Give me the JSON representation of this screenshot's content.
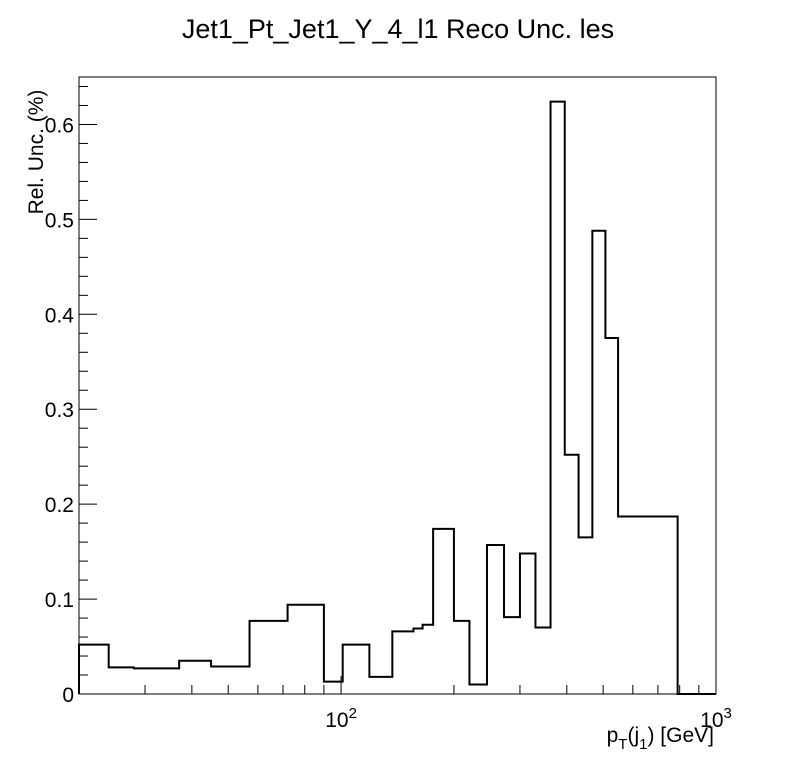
{
  "chart_data": {
    "type": "histogram-step",
    "title": "Jet1_Pt_Jet1_Y_4_l1 Reco Unc. les",
    "xlabel": {
      "base": "p",
      "sub1": "T",
      "mid": "(j",
      "sub2": "1",
      "tail": ") [GeV]"
    },
    "ylabel": "Rel. Unc. (%)",
    "x_scale": "log",
    "xlim": [
      20,
      1000
    ],
    "ylim": [
      0,
      0.65
    ],
    "y_ticks": [
      0,
      0.1,
      0.2,
      0.3,
      0.4,
      0.5,
      0.6
    ],
    "y_tick_labels": [
      "0",
      "0.1",
      "0.2",
      "0.3",
      "0.4",
      "0.5",
      "0.6"
    ],
    "x_major_ticks": [
      {
        "value": 100,
        "base": "10",
        "exp": "2"
      },
      {
        "value": 1000,
        "base": "10",
        "exp": "3"
      }
    ],
    "bins": [
      {
        "lo": 20,
        "hi": 24,
        "value": 0.052
      },
      {
        "lo": 24,
        "hi": 28,
        "value": 0.028
      },
      {
        "lo": 28,
        "hi": 37,
        "value": 0.027
      },
      {
        "lo": 37,
        "hi": 45,
        "value": 0.035
      },
      {
        "lo": 45,
        "hi": 57,
        "value": 0.029
      },
      {
        "lo": 57,
        "hi": 72,
        "value": 0.077
      },
      {
        "lo": 72,
        "hi": 90,
        "value": 0.094
      },
      {
        "lo": 90,
        "hi": 101,
        "value": 0.013
      },
      {
        "lo": 101,
        "hi": 119,
        "value": 0.052
      },
      {
        "lo": 119,
        "hi": 137,
        "value": 0.018
      },
      {
        "lo": 137,
        "hi": 156,
        "value": 0.066
      },
      {
        "lo": 156,
        "hi": 165,
        "value": 0.069
      },
      {
        "lo": 165,
        "hi": 176,
        "value": 0.073
      },
      {
        "lo": 176,
        "hi": 200,
        "value": 0.174
      },
      {
        "lo": 200,
        "hi": 220,
        "value": 0.077
      },
      {
        "lo": 220,
        "hi": 245,
        "value": 0.01
      },
      {
        "lo": 245,
        "hi": 272,
        "value": 0.157
      },
      {
        "lo": 272,
        "hi": 300,
        "value": 0.081
      },
      {
        "lo": 300,
        "hi": 330,
        "value": 0.148
      },
      {
        "lo": 330,
        "hi": 362,
        "value": 0.07
      },
      {
        "lo": 362,
        "hi": 395,
        "value": 0.624
      },
      {
        "lo": 395,
        "hi": 430,
        "value": 0.252
      },
      {
        "lo": 430,
        "hi": 468,
        "value": 0.165
      },
      {
        "lo": 468,
        "hi": 507,
        "value": 0.488
      },
      {
        "lo": 507,
        "hi": 548,
        "value": 0.375
      },
      {
        "lo": 548,
        "hi": 790,
        "value": 0.187
      },
      {
        "lo": 790,
        "hi": 1000,
        "value": 0.0
      }
    ]
  }
}
